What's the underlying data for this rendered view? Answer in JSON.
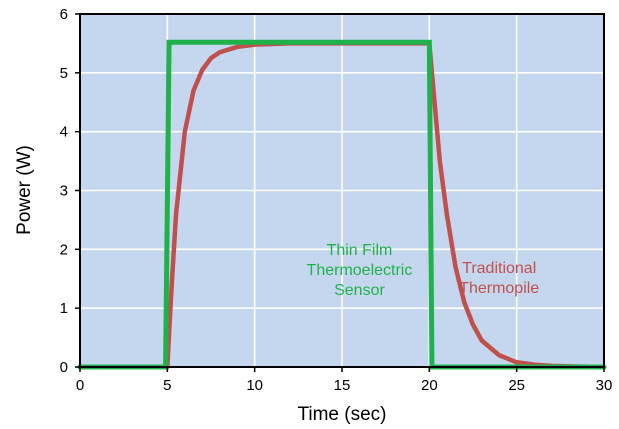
{
  "chart_data": {
    "type": "line",
    "title": "",
    "xlabel": "Time (sec)",
    "ylabel": "Power (W)",
    "xlim": [
      0,
      30
    ],
    "ylim": [
      0,
      6
    ],
    "xticks": [
      0,
      5,
      10,
      15,
      20,
      25,
      30
    ],
    "yticks": [
      0,
      1,
      2,
      3,
      4,
      5,
      6
    ],
    "grid": true,
    "background_color": "#c5d7ee",
    "series": [
      {
        "label": "Thin Film Thermoelectric Sensor",
        "color": "#1fb14a",
        "x": [
          0,
          4.9,
          5.1,
          20.0,
          20.15,
          30
        ],
        "y": [
          0,
          0,
          5.52,
          5.52,
          0,
          0
        ]
      },
      {
        "label": "Traditional Thermopile",
        "color": "#c0504d",
        "x": [
          0,
          5.0,
          5.25,
          5.5,
          6.0,
          6.5,
          7.0,
          7.5,
          8.0,
          9.0,
          10.0,
          12.0,
          15.0,
          20.0,
          20.3,
          20.6,
          21.0,
          21.5,
          22.0,
          22.5,
          23.0,
          24.0,
          25.0,
          26.0,
          27.0,
          28.0,
          30.0
        ],
        "y": [
          0,
          0,
          1.4,
          2.6,
          4.0,
          4.7,
          5.05,
          5.25,
          5.35,
          5.44,
          5.48,
          5.5,
          5.5,
          5.5,
          4.5,
          3.5,
          2.6,
          1.7,
          1.1,
          0.72,
          0.45,
          0.2,
          0.08,
          0.04,
          0.02,
          0.01,
          0.0
        ]
      }
    ],
    "annotations": [
      {
        "lines": [
          "Thin Film",
          "Thermoelectric",
          "Sensor"
        ],
        "color": "#1fb14a",
        "anchor": [
          16.0,
          1.9
        ]
      },
      {
        "lines": [
          "Traditional",
          "Thermopile"
        ],
        "color": "#c0504d",
        "anchor": [
          24.0,
          1.6
        ]
      }
    ]
  }
}
